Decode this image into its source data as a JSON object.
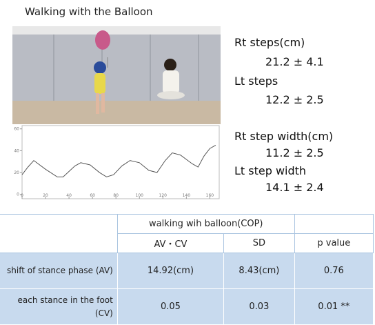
{
  "title": "Walking with the Balloon",
  "stats": [
    "Rt steps(cm)",
    "21.2 ± 4.1",
    "Lt steps",
    "12.2 ± 2.5",
    "Rt step width(cm)",
    "11.2 ± 2.5",
    "Lt step width",
    "14.1 ± 2.4"
  ],
  "chart_data": {
    "type": "line",
    "x": [
      0,
      5,
      10,
      20,
      30,
      35,
      45,
      50,
      58,
      66,
      72,
      78,
      85,
      92,
      100,
      108,
      115,
      122,
      128,
      135,
      145,
      150,
      155,
      160,
      165
    ],
    "series": [
      {
        "color": "#555555",
        "values": [
          18,
          25,
          31,
          23,
          16,
          16,
          26,
          29,
          27,
          20,
          16,
          18,
          26,
          31,
          29,
          22,
          20,
          31,
          38,
          36,
          28,
          25,
          35,
          42,
          45
        ]
      }
    ],
    "xlim": [
      0,
      168
    ],
    "xticks": [
      0,
      20,
      40,
      60,
      80,
      100,
      120,
      140,
      160
    ],
    "ylim": [
      -4,
      63
    ],
    "yticks": [
      0,
      20,
      40,
      60
    ]
  },
  "table": {
    "group_header": "walking wih balloon(COP)",
    "columns": [
      "AV・CV",
      "SD",
      "p value"
    ],
    "rows": [
      [
        "shift of stance phase (AV)",
        "14.92(cm)",
        "8.43(cm)",
        "0.76"
      ],
      [
        "each stance in the foot (CV)",
        "0.05",
        "0.03",
        "0.01 **"
      ]
    ]
  }
}
